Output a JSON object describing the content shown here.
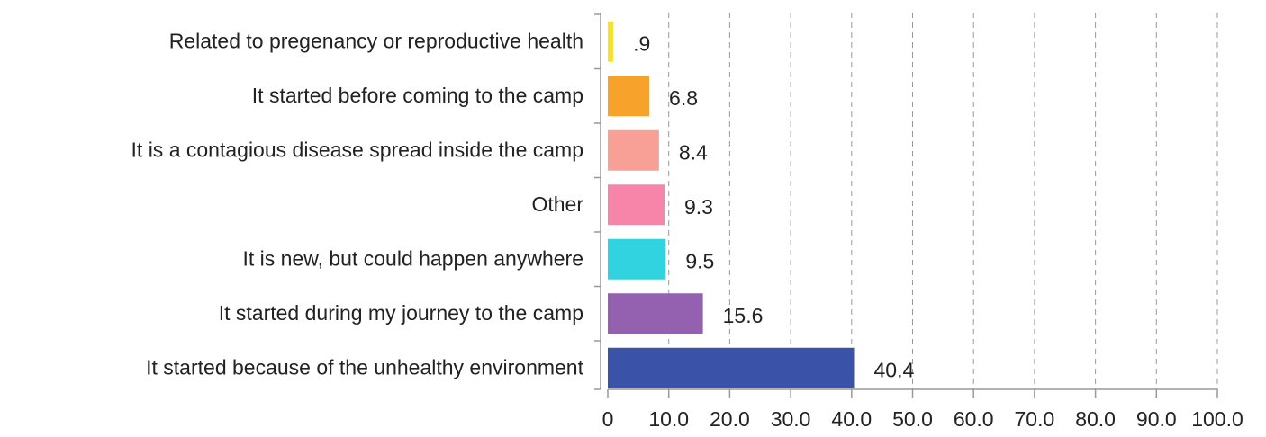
{
  "chart_data": {
    "type": "bar",
    "orientation": "horizontal",
    "categories": [
      "Related to pregenancy or reproductive health",
      "It started before coming to the camp",
      "It is a contagious disease spread inside the camp",
      "Other",
      "It is new, but could happen anywhere",
      "It started during my journey to the camp",
      "It started because of the unhealthy environment"
    ],
    "values": [
      0.9,
      6.8,
      8.4,
      9.3,
      9.5,
      15.6,
      40.4
    ],
    "value_labels": [
      ".9",
      "6.8",
      "8.4",
      "9.3",
      "9.5",
      "15.6",
      "40.4"
    ],
    "colors": [
      "#f6e12c",
      "#f6a22b",
      "#f8a095",
      "#f785a9",
      "#30d3df",
      "#9361b0",
      "#3a53a8"
    ],
    "xlim": [
      0,
      100
    ],
    "xticks": [
      0,
      {
        "value": 10,
        "label": "10.0"
      },
      {
        "value": 20,
        "label": "20.0"
      },
      {
        "value": 30,
        "label": "30.0"
      },
      {
        "value": 40,
        "label": "40.0"
      },
      {
        "value": 50,
        "label": "50.0"
      },
      {
        "value": 60,
        "label": "60.0"
      },
      {
        "value": 70,
        "label": "70.0"
      },
      {
        "value": 80,
        "label": "80.0"
      },
      {
        "value": 90,
        "label": "90.0"
      },
      {
        "value": 100,
        "label": "100.0"
      }
    ],
    "grid": true
  }
}
